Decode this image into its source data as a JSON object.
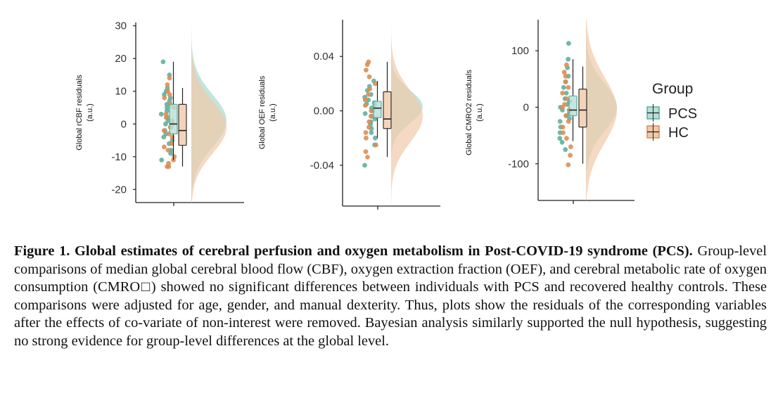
{
  "colors": {
    "pcs": "#5cae9e",
    "hc": "#d98c52",
    "pcs_fill": "#b7e0d8",
    "hc_fill": "#f1c9a8",
    "overlap": "#c2bc9a"
  },
  "chart_data": [
    {
      "type": "raincloud",
      "ylabel_line1": "Global rCBF residuals",
      "ylabel_line2": "(a.u.)",
      "ylim": [
        -24,
        31
      ],
      "ticks": [
        30,
        20,
        10,
        0,
        -10,
        -20
      ],
      "tick_labels": [
        "30",
        "20",
        "10",
        "0",
        "-10",
        "-20"
      ],
      "series": [
        {
          "name": "PCS",
          "box": {
            "min": -11,
            "q1": -3,
            "median": 0,
            "q3": 6,
            "max": 19
          },
          "density_mean": 1,
          "density_sd": 8,
          "points": [
            19,
            15,
            11,
            10,
            9,
            8,
            7,
            6,
            5,
            4,
            3,
            2,
            1,
            0,
            -1,
            -2,
            -3,
            -4,
            -5,
            -6,
            -8,
            -9,
            -11
          ]
        },
        {
          "name": "HC",
          "box": {
            "min": -13,
            "q1": -6.5,
            "median": -2,
            "q3": 6,
            "max": 11
          },
          "density_mean": -1,
          "density_sd": 8,
          "points": [
            14,
            12,
            10,
            9,
            8,
            6,
            5,
            3,
            2,
            1,
            0,
            -1,
            -2,
            -3,
            -4,
            -6,
            -7,
            -8,
            -10,
            -11,
            -12,
            -13,
            -13
          ]
        }
      ]
    },
    {
      "type": "raincloud",
      "ylabel_line1": "Global OEF residuals",
      "ylabel_line2": "(a.u.)",
      "ylim": [
        -0.07,
        0.067
      ],
      "ticks": [
        0.04,
        0.0,
        -0.04
      ],
      "tick_labels": [
        "0.04",
        "0.00",
        "-0.04"
      ],
      "series": [
        {
          "name": "PCS",
          "box": {
            "min": -0.02,
            "q1": -0.005,
            "median": 0.002,
            "q3": 0.007,
            "max": 0.022
          },
          "density_mean": 0.003,
          "density_sd": 0.012,
          "points": [
            0.022,
            0.018,
            0.015,
            0.012,
            0.01,
            0.008,
            0.006,
            0.005,
            0.004,
            0.002,
            0.0,
            -0.002,
            -0.004,
            -0.006,
            -0.008,
            -0.01,
            -0.013,
            -0.016,
            -0.02,
            -0.025,
            -0.04
          ]
        },
        {
          "name": "HC",
          "box": {
            "min": -0.034,
            "q1": -0.013,
            "median": -0.006,
            "q3": 0.014,
            "max": 0.036
          },
          "density_mean": -0.004,
          "density_sd": 0.019,
          "points": [
            0.036,
            0.034,
            0.03,
            0.025,
            0.02,
            0.016,
            0.012,
            0.008,
            0.004,
            0.0,
            -0.004,
            -0.008,
            -0.012,
            -0.016,
            -0.02,
            -0.025,
            -0.03,
            -0.034
          ]
        }
      ]
    },
    {
      "type": "raincloud",
      "ylabel_line1": "Global CMRO2 residuals",
      "ylabel_line2": "(a.u.)",
      "ylim": [
        -165,
        155
      ],
      "ticks": [
        100,
        0,
        -100
      ],
      "tick_labels": [
        "100",
        "0",
        "-100"
      ],
      "series": [
        {
          "name": "PCS",
          "box": {
            "min": -60,
            "q1": -15,
            "median": -5,
            "q3": 20,
            "max": 85
          },
          "density_mean": 0,
          "density_sd": 42,
          "points": [
            113,
            85,
            70,
            55,
            45,
            35,
            25,
            15,
            10,
            5,
            0,
            -5,
            -10,
            -15,
            -20,
            -25,
            -35,
            -45,
            -55,
            -62,
            -75
          ]
        },
        {
          "name": "HC",
          "box": {
            "min": -100,
            "q1": -35,
            "median": -5,
            "q3": 32,
            "max": 72
          },
          "density_mean": -5,
          "density_sd": 58,
          "points": [
            75,
            62,
            55,
            45,
            35,
            25,
            15,
            5,
            0,
            -5,
            -15,
            -25,
            -35,
            -45,
            -55,
            -70,
            -85,
            -102
          ]
        }
      ]
    }
  ],
  "legend": {
    "title": "Group",
    "items": [
      {
        "label": "PCS",
        "key": "pcs"
      },
      {
        "label": "HC",
        "key": "hc"
      }
    ]
  },
  "caption": {
    "bold": "Figure 1. Global estimates of cerebral perfusion and oxygen metabolism in Post-COVID-19 syndrome (PCS).",
    "body": " Group-level comparisons of median global cerebral blood flow (CBF), oxygen extraction fraction (OEF), and cerebral metabolic rate of oxygen consumption (CMRO□) showed no significant differences between individuals with PCS and recovered healthy controls. These comparisons were adjusted for age, gender, and manual dexterity. Thus, plots show the residuals of the corresponding variables after the effects of co-variate of non-interest were removed. Bayesian analysis similarly supported the null hypothesis, suggesting no strong evidence for group-level differences at the global level."
  }
}
